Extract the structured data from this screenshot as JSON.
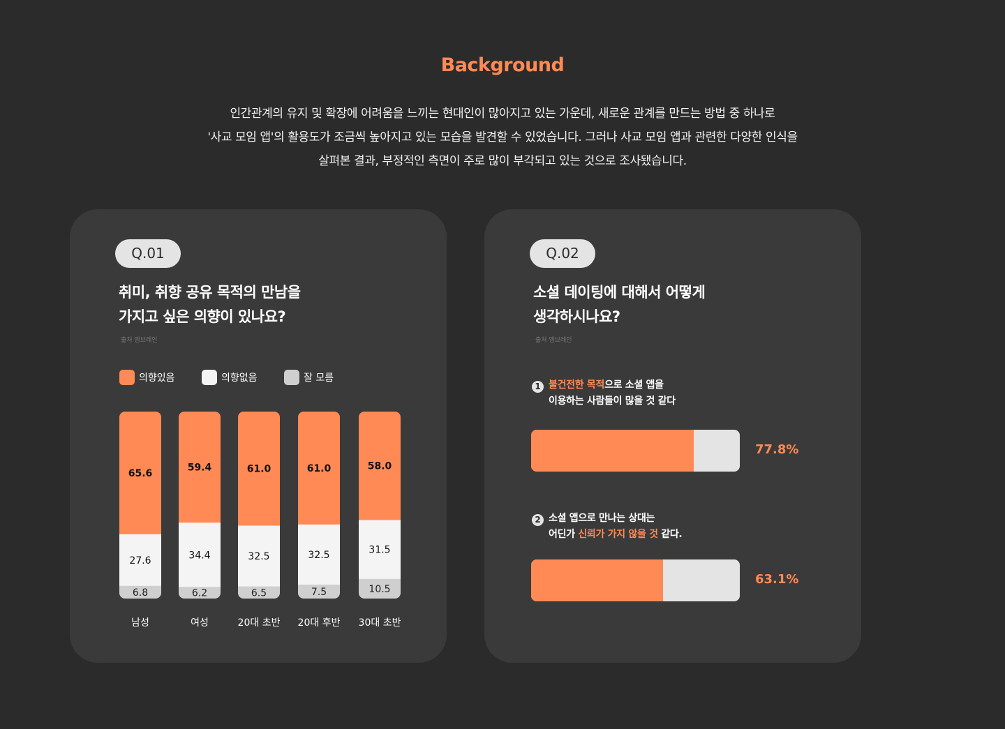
{
  "section": {
    "title": "Background",
    "intro": [
      "인간관계의 유지 및 확장에 어려움을 느끼는 현대인이 많아지고 있는 가운데, 새로운 관계를 만드는 방법 중 하나로",
      "'사교 모임 앱'의 활용도가 조금씩 높아지고 있는 모습을 발견할 수 있었습니다.  그러나 사교 모임 앱과 관련한 다양한 인식을",
      "살펴본 결과, 부정적인 측면이 주로 많이 부각되고 있는 것으로 조사됐습니다."
    ]
  },
  "colors": {
    "accent": "#ff8a55",
    "white_bar": "#f4f4f4",
    "grey_bar": "#cfcfcf",
    "card_bg": "#3a3a3a",
    "page_bg": "#2b2b2b"
  },
  "q1": {
    "badge": "Q.01",
    "question_lines": [
      "취미, 취향 공유 목적의 만남을",
      "가지고 싶은 의향이 있나요?"
    ],
    "source": "출처 엠브레인",
    "legend": [
      "의향있음",
      "의향없음",
      "잘 모름"
    ]
  },
  "q2": {
    "badge": "Q.02",
    "question_lines": [
      "소셜 데이팅에 대해서 어떻게",
      "생각하시나요?"
    ],
    "source": "출처 엠브레인",
    "items": [
      {
        "number": "1",
        "line1_highlight": "불건전한 목적",
        "line1_rest": "으로 소셜 앱을",
        "line2_pre": "이용하는 사람들이 많을 것 같다",
        "line2_highlight": "",
        "line2_post": "",
        "value": 77.8,
        "value_label": "77.8%"
      },
      {
        "number": "2",
        "line1_highlight": "",
        "line1_rest": "소셜 앱으로 만나는 상대는",
        "line2_pre": "어딘가 ",
        "line2_highlight": "신뢰가 가지 않을 것",
        "line2_post": " 같다.",
        "value": 63.1,
        "value_label": "63.1%"
      }
    ]
  },
  "chart_data": {
    "type": "bar",
    "stacked": true,
    "normalized": true,
    "categories": [
      "남성",
      "여성",
      "20대 초반",
      "20대 후반",
      "30대 초반"
    ],
    "series": [
      {
        "name": "의향있음",
        "color": "#ff8a55",
        "values": [
          65.6,
          59.4,
          61.0,
          61.0,
          58.0
        ]
      },
      {
        "name": "의향없음",
        "color": "#f4f4f4",
        "values": [
          27.6,
          34.4,
          32.5,
          32.5,
          31.5
        ]
      },
      {
        "name": "잘 모름",
        "color": "#cfcfcf",
        "values": [
          6.8,
          6.2,
          6.5,
          7.5,
          10.5
        ]
      }
    ],
    "legend_position": "top-left"
  }
}
